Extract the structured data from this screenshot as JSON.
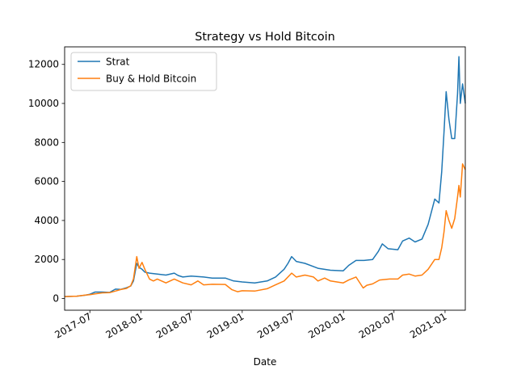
{
  "chart_data": {
    "type": "line",
    "title": "Strategy vs Hold Bitcoin",
    "xlabel": "Date",
    "ylabel": "",
    "xlim": [
      "2017-04-01",
      "2021-03-15"
    ],
    "ylim": [
      -600,
      12900
    ],
    "x_ticks": [
      "2017-07",
      "2018-01",
      "2018-07",
      "2019-01",
      "2019-07",
      "2020-01",
      "2020-07",
      "2021-01"
    ],
    "y_ticks": [
      0,
      2000,
      4000,
      6000,
      8000,
      10000,
      12000
    ],
    "grid": false,
    "legend_position": "top-left",
    "series": [
      {
        "name": "Strat",
        "color": "#1f77b4",
        "points": [
          [
            "2017-04-01",
            100
          ],
          [
            "2017-05-15",
            120
          ],
          [
            "2017-06-15",
            170
          ],
          [
            "2017-07-01",
            220
          ],
          [
            "2017-07-20",
            330
          ],
          [
            "2017-08-15",
            330
          ],
          [
            "2017-09-10",
            310
          ],
          [
            "2017-10-01",
            480
          ],
          [
            "2017-10-20",
            470
          ],
          [
            "2017-11-10",
            550
          ],
          [
            "2017-11-25",
            640
          ],
          [
            "2017-12-05",
            900
          ],
          [
            "2017-12-17",
            1800
          ],
          [
            "2017-12-25",
            1600
          ],
          [
            "2018-01-05",
            1500
          ],
          [
            "2018-01-15",
            1350
          ],
          [
            "2018-02-01",
            1300
          ],
          [
            "2018-03-01",
            1250
          ],
          [
            "2018-04-01",
            1200
          ],
          [
            "2018-05-01",
            1300
          ],
          [
            "2018-05-15",
            1180
          ],
          [
            "2018-06-01",
            1100
          ],
          [
            "2018-07-01",
            1150
          ],
          [
            "2018-08-15",
            1100
          ],
          [
            "2018-09-15",
            1050
          ],
          [
            "2018-11-01",
            1050
          ],
          [
            "2018-12-01",
            900
          ],
          [
            "2019-01-01",
            850
          ],
          [
            "2019-02-15",
            800
          ],
          [
            "2019-04-01",
            900
          ],
          [
            "2019-05-01",
            1100
          ],
          [
            "2019-06-01",
            1500
          ],
          [
            "2019-06-15",
            1800
          ],
          [
            "2019-06-28",
            2150
          ],
          [
            "2019-07-15",
            1900
          ],
          [
            "2019-08-15",
            1800
          ],
          [
            "2019-10-01",
            1550
          ],
          [
            "2019-11-15",
            1450
          ],
          [
            "2019-12-31",
            1420
          ],
          [
            "2020-01-20",
            1700
          ],
          [
            "2020-02-15",
            1950
          ],
          [
            "2020-03-15",
            1950
          ],
          [
            "2020-04-15",
            2000
          ],
          [
            "2020-05-05",
            2400
          ],
          [
            "2020-05-20",
            2800
          ],
          [
            "2020-06-10",
            2550
          ],
          [
            "2020-07-15",
            2500
          ],
          [
            "2020-08-01",
            2950
          ],
          [
            "2020-08-25",
            3100
          ],
          [
            "2020-09-15",
            2900
          ],
          [
            "2020-10-10",
            3050
          ],
          [
            "2020-11-01",
            3800
          ],
          [
            "2020-11-25",
            5100
          ],
          [
            "2020-12-10",
            4900
          ],
          [
            "2020-12-20",
            6500
          ],
          [
            "2020-12-28",
            8500
          ],
          [
            "2021-01-05",
            10600
          ],
          [
            "2021-01-15",
            9200
          ],
          [
            "2021-01-25",
            8200
          ],
          [
            "2021-02-05",
            8200
          ],
          [
            "2021-02-15",
            10500
          ],
          [
            "2021-02-20",
            12400
          ],
          [
            "2021-02-25",
            10000
          ],
          [
            "2021-03-05",
            11000
          ],
          [
            "2021-03-15",
            10000
          ]
        ]
      },
      {
        "name": "Buy & Hold Bitcoin",
        "color": "#ff7f0e",
        "points": [
          [
            "2017-04-01",
            100
          ],
          [
            "2017-05-15",
            120
          ],
          [
            "2017-06-15",
            180
          ],
          [
            "2017-07-01",
            200
          ],
          [
            "2017-07-20",
            240
          ],
          [
            "2017-08-15",
            290
          ],
          [
            "2017-09-10",
            300
          ],
          [
            "2017-10-01",
            380
          ],
          [
            "2017-10-20",
            460
          ],
          [
            "2017-11-10",
            520
          ],
          [
            "2017-11-25",
            650
          ],
          [
            "2017-12-05",
            1000
          ],
          [
            "2017-12-17",
            2150
          ],
          [
            "2017-12-25",
            1550
          ],
          [
            "2018-01-05",
            1850
          ],
          [
            "2018-01-15",
            1500
          ],
          [
            "2018-02-01",
            1000
          ],
          [
            "2018-02-15",
            900
          ],
          [
            "2018-03-01",
            1000
          ],
          [
            "2018-04-01",
            800
          ],
          [
            "2018-05-01",
            1000
          ],
          [
            "2018-06-01",
            800
          ],
          [
            "2018-07-01",
            700
          ],
          [
            "2018-07-25",
            900
          ],
          [
            "2018-08-15",
            700
          ],
          [
            "2018-09-15",
            730
          ],
          [
            "2018-11-01",
            720
          ],
          [
            "2018-11-25",
            450
          ],
          [
            "2018-12-15",
            350
          ],
          [
            "2019-01-01",
            400
          ],
          [
            "2019-02-15",
            380
          ],
          [
            "2019-04-01",
            500
          ],
          [
            "2019-05-01",
            700
          ],
          [
            "2019-06-01",
            900
          ],
          [
            "2019-06-28",
            1300
          ],
          [
            "2019-07-15",
            1100
          ],
          [
            "2019-08-15",
            1200
          ],
          [
            "2019-09-15",
            1100
          ],
          [
            "2019-10-01",
            900
          ],
          [
            "2019-10-25",
            1050
          ],
          [
            "2019-11-15",
            900
          ],
          [
            "2019-12-31",
            800
          ],
          [
            "2020-01-20",
            950
          ],
          [
            "2020-02-15",
            1100
          ],
          [
            "2020-03-12",
            540
          ],
          [
            "2020-03-25",
            680
          ],
          [
            "2020-04-15",
            750
          ],
          [
            "2020-05-10",
            950
          ],
          [
            "2020-06-15",
            1000
          ],
          [
            "2020-07-15",
            1000
          ],
          [
            "2020-08-01",
            1200
          ],
          [
            "2020-08-25",
            1250
          ],
          [
            "2020-09-15",
            1150
          ],
          [
            "2020-10-10",
            1200
          ],
          [
            "2020-11-01",
            1500
          ],
          [
            "2020-11-25",
            2000
          ],
          [
            "2020-12-10",
            2000
          ],
          [
            "2020-12-20",
            2600
          ],
          [
            "2020-12-28",
            3400
          ],
          [
            "2021-01-05",
            4500
          ],
          [
            "2021-01-15",
            4000
          ],
          [
            "2021-01-25",
            3600
          ],
          [
            "2021-02-05",
            4100
          ],
          [
            "2021-02-15",
            5200
          ],
          [
            "2021-02-20",
            5800
          ],
          [
            "2021-02-25",
            5200
          ],
          [
            "2021-03-05",
            6900
          ],
          [
            "2021-03-15",
            6600
          ]
        ]
      }
    ]
  }
}
